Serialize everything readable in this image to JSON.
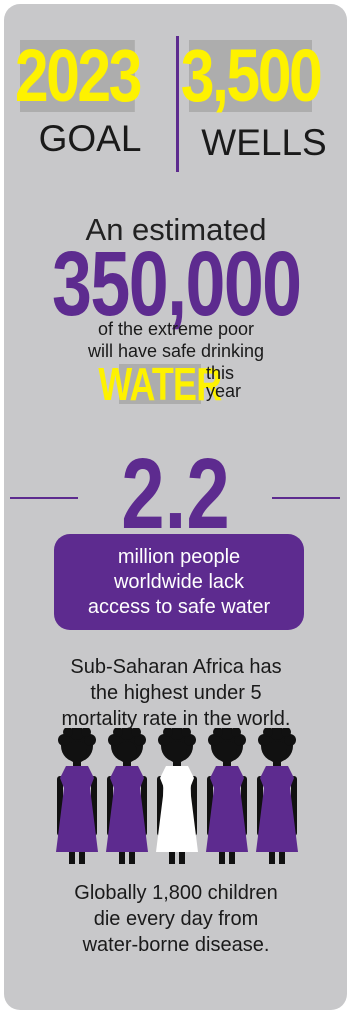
{
  "goal": {
    "year": "2023",
    "year_label": "GOAL",
    "count": "3,500",
    "count_label": "WELLS"
  },
  "estimate": {
    "lead": "An estimated",
    "number": "350,000",
    "line1": "of the extreme poor",
    "line2": "will have safe drinking",
    "water_word": "WATER",
    "this": "this",
    "year": "year"
  },
  "lack": {
    "number": "2.2",
    "line1": "million people",
    "line2": "worldwide lack",
    "line3": "access to safe water"
  },
  "africa": {
    "line1": "Sub-Saharan Africa has",
    "line2": "the highest under 5",
    "line3": "mortality rate in the world."
  },
  "children": {
    "figures": [
      "purple",
      "purple",
      "white",
      "purple",
      "purple"
    ],
    "line1": "Globally 1,800 children",
    "line2": "die every day from",
    "line3": "water-borne disease."
  },
  "colors": {
    "purple": "#5d2b8f",
    "yellow": "#fef200",
    "card_gray": "#c8c8ca",
    "highlight_gray": "#adadad"
  }
}
